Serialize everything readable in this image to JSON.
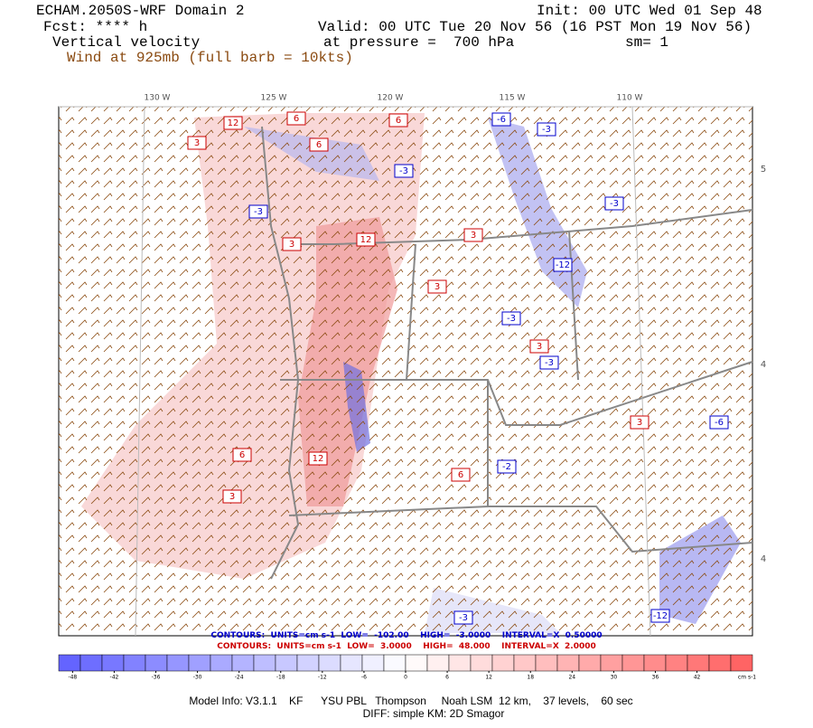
{
  "header": {
    "title": "ECHAM.2050S-WRF Domain 2",
    "init": "Init: 00 UTC Wed 01 Sep 48",
    "fcst": "Fcst: **** h",
    "valid": "Valid: 00 UTC Tue 20 Nov 56 (16 PST Mon 19 Nov 56)",
    "field": "Vertical velocity",
    "pressure": "at pressure =  700 hPa",
    "smooth": "sm= 1",
    "wind": "Wind at 925mb (full barb = 10kts)"
  },
  "map": {
    "longitudes": [
      "130 W",
      "125 W",
      "120 W",
      "115 W",
      "110 W"
    ],
    "latitudes": [
      "5",
      "4",
      "4"
    ],
    "labels": [
      "12",
      "6",
      "6",
      "6",
      "3",
      "-6",
      "-3",
      "-3",
      "12",
      "-3",
      "3",
      "-12",
      "3",
      "-3",
      "3",
      "12",
      "6",
      "-3",
      "-2",
      "3",
      "-6",
      "3",
      "-3",
      "-12",
      "-3",
      "3",
      "6"
    ]
  },
  "contours": {
    "negative": "CONTOURS:  UNITS=cm s-1  LOW=  -102.00    HIGH=  -3.0000    INTERVAL=X  0.50000",
    "positive": "CONTOURS:  UNITS=cm s-1  LOW=  3.0000    HIGH=  48.000    INTERVAL=X  2.0000"
  },
  "colorbar": {
    "range": [
      -50,
      50
    ],
    "ticks": [
      -48,
      -42,
      -36,
      -30,
      -24,
      -18,
      -12,
      -6,
      0,
      6,
      12,
      18,
      24,
      30,
      36,
      42
    ],
    "units": "cm s-1"
  },
  "footer": {
    "model": "Model Info: V3.1.1    KF      YSU PBL   Thompson     Noah LSM  12 km,    37 levels,    60 sec",
    "diff": "DIFF: simple KM: 2D Smagor"
  }
}
